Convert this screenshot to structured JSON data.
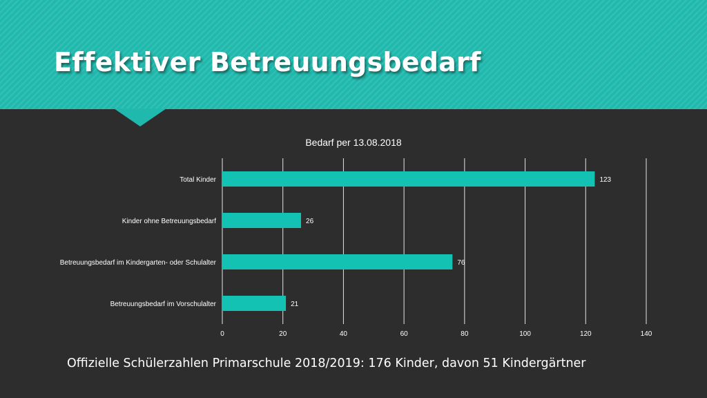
{
  "slide": {
    "title": "Effektiver Betreuungsbedarf",
    "footer": "Offizielle Schülerzahlen Primarschule 2018/2019: 176 Kinder, davon 51 Kindergärtner"
  },
  "colors": {
    "accent": "#1fb9ad",
    "bar": "#13c2b3",
    "background": "#2d2d2d",
    "text": "#ffffff"
  },
  "chart_data": {
    "type": "bar",
    "orientation": "horizontal",
    "title": "Bedarf per 13.08.2018",
    "categories": [
      "Total Kinder",
      "Kinder ohne Betreuungsbedarf",
      "Betreuungsbedarf im Kindergarten- oder Schulalter",
      "Betreuungsbedarf im Vorschulalter"
    ],
    "values": [
      123,
      26,
      76,
      21
    ],
    "data_labels": [
      "123",
      "26",
      "76",
      "21"
    ],
    "xlim": [
      0,
      140
    ],
    "xticks": [
      0,
      20,
      40,
      60,
      80,
      100,
      120,
      140
    ],
    "xtick_labels": [
      "0",
      "20",
      "40",
      "60",
      "80",
      "100",
      "120",
      "140"
    ],
    "grid": "vertical",
    "legend": "none"
  }
}
